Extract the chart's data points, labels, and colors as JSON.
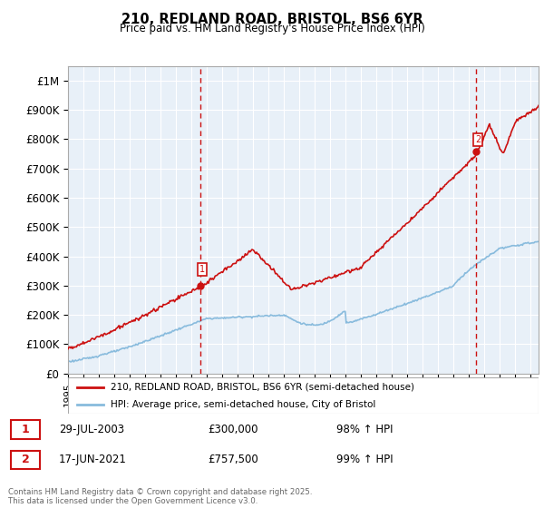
{
  "title": "210, REDLAND ROAD, BRISTOL, BS6 6YR",
  "subtitle": "Price paid vs. HM Land Registry's House Price Index (HPI)",
  "hpi_label": "HPI: Average price, semi-detached house, City of Bristol",
  "property_label": "210, REDLAND ROAD, BRISTOL, BS6 6YR (semi-detached house)",
  "footer": "Contains HM Land Registry data © Crown copyright and database right 2025.\nThis data is licensed under the Open Government Licence v3.0.",
  "annotation1_date": "29-JUL-2003",
  "annotation1_price": "£300,000",
  "annotation1_hpi": "98% ↑ HPI",
  "annotation2_date": "17-JUN-2021",
  "annotation2_price": "£757,500",
  "annotation2_hpi": "99% ↑ HPI",
  "ylim_max": 1050000,
  "yticks": [
    0,
    100000,
    200000,
    300000,
    400000,
    500000,
    600000,
    700000,
    800000,
    900000,
    1000000
  ],
  "ytick_labels": [
    "£0",
    "£100K",
    "£200K",
    "£300K",
    "£400K",
    "£500K",
    "£600K",
    "£700K",
    "£800K",
    "£900K",
    "£1M"
  ],
  "property_color": "#cc1111",
  "hpi_color": "#88bbdd",
  "annotation_color": "#cc1111",
  "grid_color": "#cccccc",
  "grid_bg_color": "#e8f0f8",
  "marker1_x": 2003.57,
  "marker1_y": 300000,
  "marker2_x": 2021.46,
  "marker2_y": 757500,
  "vline1_x": 2003.57,
  "vline2_x": 2021.46,
  "xmin": 1995,
  "xmax": 2025.5
}
